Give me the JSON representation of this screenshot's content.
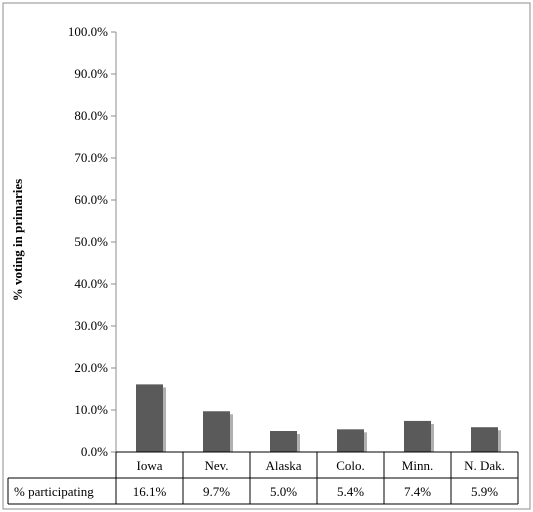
{
  "chart_data": {
    "type": "bar",
    "categories": [
      "Iowa",
      "Nev.",
      "Alaska",
      "Colo.",
      "Minn.",
      "N. Dak."
    ],
    "values": [
      16.1,
      9.7,
      5.0,
      5.4,
      7.4,
      5.9
    ],
    "value_labels": [
      "16.1%",
      "9.7%",
      "5.0%",
      "5.4%",
      "7.4%",
      "5.9%"
    ],
    "title": "",
    "xlabel": "",
    "ylabel": "% voting in primaries",
    "ylim": [
      0,
      100
    ],
    "y_ticks": [
      0,
      10,
      20,
      30,
      40,
      50,
      60,
      70,
      80,
      90,
      100
    ],
    "y_tick_labels": [
      "0.0%",
      "10.0%",
      "20.0%",
      "30.0%",
      "40.0%",
      "50.0%",
      "60.0%",
      "70.0%",
      "80.0%",
      "90.0%",
      "100.0%"
    ],
    "grid": false,
    "data_table": {
      "row_label": "% participating"
    },
    "colors": {
      "bar": "#5a5a5a",
      "bar_shadow": "#b0b0b0",
      "outline": "#8c8c8c",
      "table_lines": "#000000"
    }
  }
}
